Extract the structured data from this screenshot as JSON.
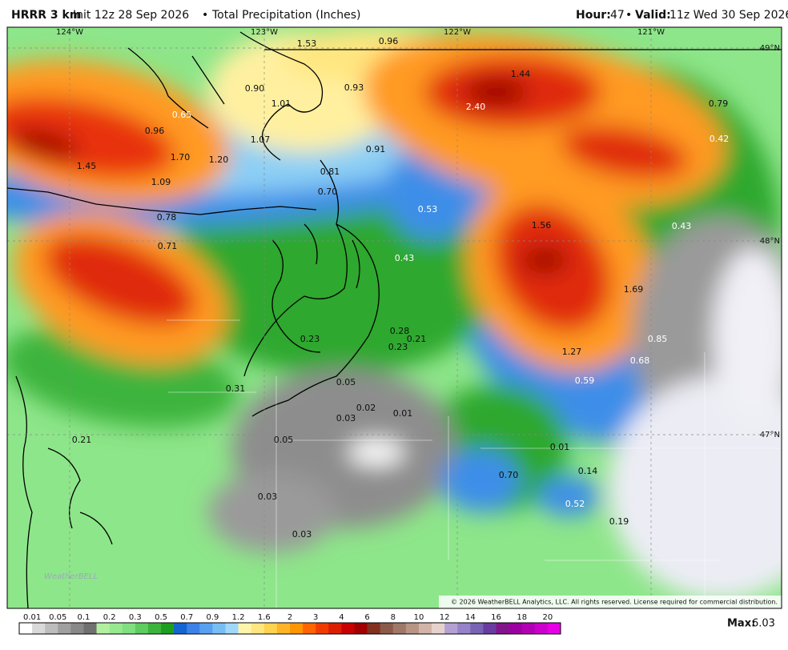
{
  "header": {
    "model": "HRRR 3 km",
    "init": "Init 12z 28 Sep 2026",
    "separator": "•",
    "product": "Total Precipitation (Inches)",
    "hour_label": "Hour:",
    "hour": "47",
    "valid_label": "Valid:",
    "valid": "11z Wed 30 Sep 2026"
  },
  "map": {
    "longitudes": [
      "124°W",
      "123°W",
      "122°W",
      "121°W"
    ],
    "latitudes": [
      "49°N",
      "48°N",
      "47°N"
    ],
    "labels": [
      "1.53",
      "0.96",
      "1.44",
      "0.90",
      "0.93",
      "1.01",
      "0.65",
      "2.40",
      "0.79",
      "0.96",
      "1.07",
      "0.91",
      "0.42",
      "1.70",
      "1.20",
      "1.45",
      "1.09",
      "0.81",
      "0.70",
      "0.53",
      "0.78",
      "1.56",
      "0.43",
      "0.71",
      "0.43",
      "1.69",
      "0.28",
      "0.21",
      "0.23",
      "0.85",
      "0.23",
      "1.27",
      "0.68",
      "0.59",
      "0.05",
      "0.31",
      "0.02",
      "0.01",
      "0.03",
      "0.21",
      "0.05",
      "0.01",
      "0.14",
      "0.70",
      "0.03",
      "0.52",
      "0.19",
      "0.03"
    ],
    "watermark": "WeatherBELL",
    "copyright": "© 2026 WeatherBELL Analytics, LLC. All rights reserved. License required for commercial distribution."
  },
  "legend": {
    "ticks": [
      "0.01",
      "0.05",
      "0.1",
      "0.2",
      "0.3",
      "0.5",
      "0.7",
      "0.9",
      "1.2",
      "1.6",
      "2",
      "3",
      "4",
      "6",
      "8",
      "10",
      "12",
      "14",
      "16",
      "18",
      "20"
    ],
    "colors": [
      "#ffffff",
      "#d9d9d9",
      "#bdbdbd",
      "#a0a0a0",
      "#888888",
      "#707070",
      "#b2f0a0",
      "#98e890",
      "#80e080",
      "#5ecc5e",
      "#3cb43c",
      "#1e9e1e",
      "#1464d2",
      "#3c82e6",
      "#5aa0f0",
      "#78bef5",
      "#a0d8fa",
      "#fff5aa",
      "#ffe680",
      "#ffd250",
      "#ffb428",
      "#ff9600",
      "#ff6400",
      "#f03c00",
      "#dc1e00",
      "#c80000",
      "#a00000",
      "#823020",
      "#8c5a4a",
      "#a07868",
      "#b89484",
      "#d2b4a8",
      "#e6d2cc",
      "#b4a0d2",
      "#9682c8",
      "#7864b4",
      "#6a3ca0",
      "#82148c",
      "#9c00a0",
      "#b400b4",
      "#cc00cc",
      "#e600e6"
    ],
    "max_label": "Max:",
    "max": "6.03"
  }
}
